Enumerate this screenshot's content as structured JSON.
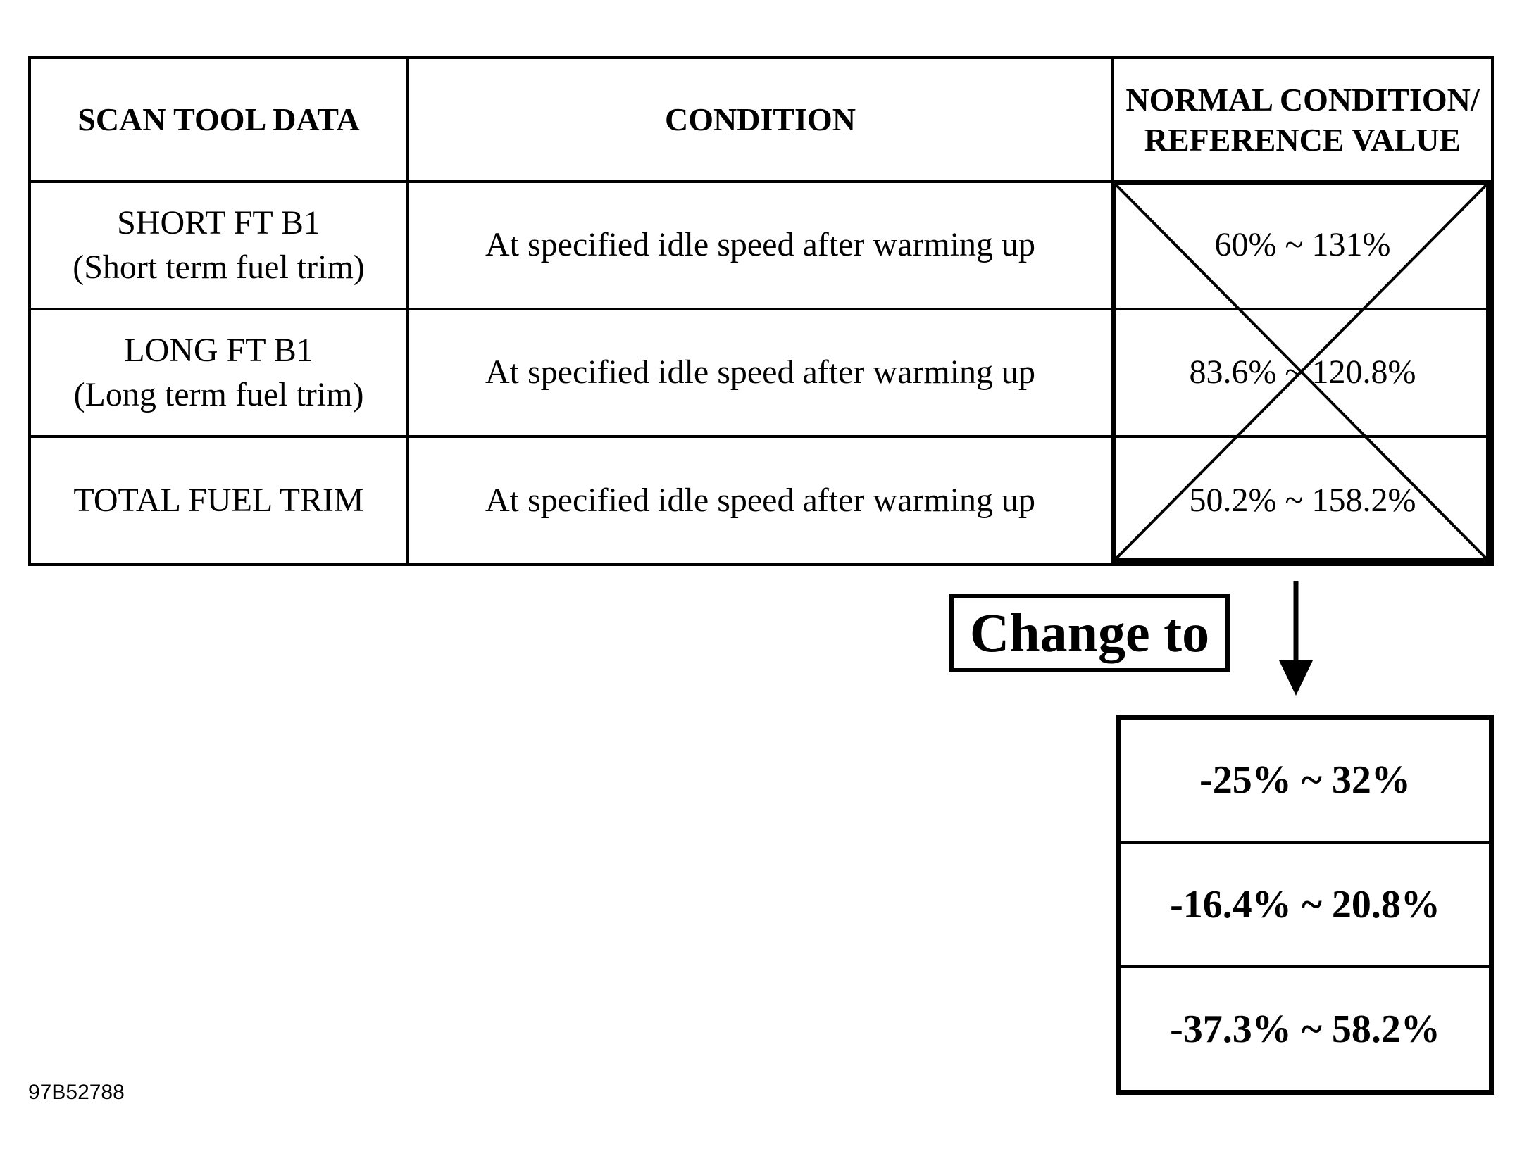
{
  "table": {
    "headers": {
      "data": "SCAN TOOL DATA",
      "condition": "CONDITION",
      "reference_line1": "NORMAL CONDITION/",
      "reference_line2": "REFERENCE VALUE"
    },
    "rows": [
      {
        "item_line1": "SHORT FT B1",
        "item_line2": "(Short term fuel trim)",
        "condition": "At specified idle speed after warming up",
        "old_value": "60% ~ 131%",
        "new_value": "-25% ~ 32%"
      },
      {
        "item_line1": "LONG FT B1",
        "item_line2": "(Long term fuel trim)",
        "condition": "At specified idle speed after warming up",
        "old_value": "83.6% ~ 120.8%",
        "new_value": "-16.4% ~ 20.8%"
      },
      {
        "item_line1": "TOTAL FUEL TRIM",
        "item_line2": "",
        "condition": "At specified idle speed after warming up",
        "old_value": "50.2% ~ 158.2%",
        "new_value": "-37.3% ~ 58.2%"
      }
    ]
  },
  "change_label": "Change to",
  "figure_id": "97B52788",
  "icons": {
    "cross": "cross-out-icon",
    "arrow": "arrow-down-icon"
  }
}
